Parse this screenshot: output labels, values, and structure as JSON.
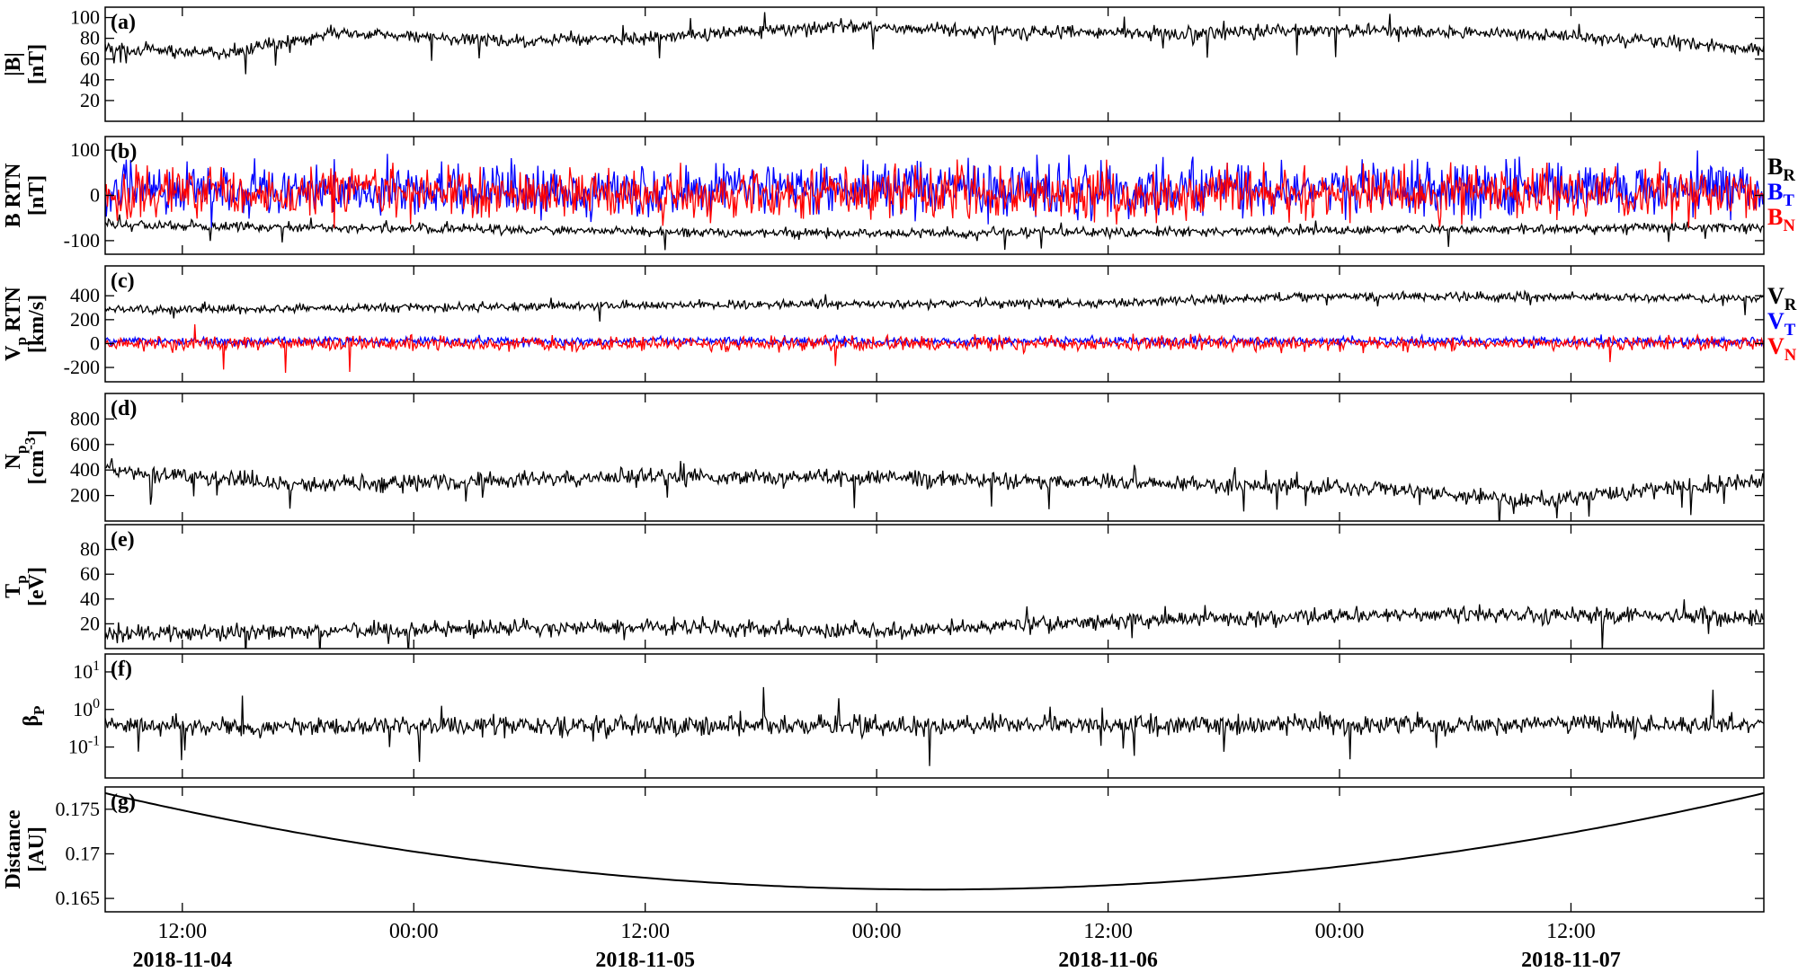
{
  "chart_data": {
    "type": "line",
    "x_start": "2018-11-04 08:00",
    "x_end": "2018-11-07 22:00",
    "x_ticks": [
      "12:00",
      "00:00",
      "12:00",
      "00:00",
      "12:00",
      "00:00",
      "12:00"
    ],
    "x_tick_times": [
      "2018-11-04 12:00",
      "2018-11-05 00:00",
      "2018-11-05 12:00",
      "2018-11-06 00:00",
      "2018-11-06 12:00",
      "2018-11-07 00:00",
      "2018-11-07 12:00"
    ],
    "date_labels": [
      "2018-11-04",
      "2018-11-05",
      "2018-11-06",
      "2018-11-07"
    ],
    "date_label_times": [
      "2018-11-04 12:00",
      "2018-11-05 12:00",
      "2018-11-06 12:00",
      "2018-11-07 12:00"
    ],
    "panels": [
      {
        "id": "a",
        "letter": "(a)",
        "ylabel": [
          "|B|",
          "[nT]"
        ],
        "ylim": [
          0,
          110
        ],
        "yscale": "linear",
        "yticks": [
          20,
          40,
          60,
          80,
          100
        ],
        "yticklabels": [
          "20",
          "40",
          "60",
          "80",
          "100"
        ],
        "series": [
          {
            "name": "|B|",
            "color": "#000000",
            "base": 80,
            "noise": 6,
            "spikes": 8,
            "trend": [
              [
                "2018-11-04 08:00",
                70
              ],
              [
                "2018-11-04 14:00",
                65
              ],
              [
                "2018-11-04 20:00",
                85
              ],
              [
                "2018-11-05 04:00",
                78
              ],
              [
                "2018-11-05 12:00",
                80
              ],
              [
                "2018-11-05 22:00",
                92
              ],
              [
                "2018-11-06 06:00",
                86
              ],
              [
                "2018-11-06 16:00",
                85
              ],
              [
                "2018-11-07 00:00",
                88
              ],
              [
                "2018-11-07 12:00",
                82
              ],
              [
                "2018-11-07 22:00",
                70
              ]
            ]
          }
        ]
      },
      {
        "id": "b",
        "letter": "(b)",
        "ylabel": [
          "B RTN",
          "[nT]"
        ],
        "ylim": [
          -130,
          130
        ],
        "yscale": "linear",
        "yticks": [
          -100,
          0,
          100
        ],
        "yticklabels": [
          "-100",
          "0",
          "100"
        ],
        "series": [
          {
            "name": "B",
            "sub": "R",
            "color": "#000000",
            "base": -75,
            "noise": 10,
            "spikes": 6,
            "trend": [
              [
                "2018-11-04 08:00",
                -65
              ],
              [
                "2018-11-05 12:00",
                -80
              ],
              [
                "2018-11-06 00:00",
                -85
              ],
              [
                "2018-11-07 22:00",
                -70
              ]
            ]
          },
          {
            "name": "B",
            "sub": "T",
            "color": "#0000ff",
            "base": 15,
            "noise": 55,
            "spikes": 0,
            "trend": [
              [
                "2018-11-04 08:00",
                10
              ],
              [
                "2018-11-07 22:00",
                15
              ]
            ]
          },
          {
            "name": "B",
            "sub": "N",
            "color": "#ff0000",
            "base": 5,
            "noise": 55,
            "spikes": 0,
            "trend": [
              [
                "2018-11-04 08:00",
                5
              ],
              [
                "2018-11-07 22:00",
                5
              ]
            ]
          }
        ]
      },
      {
        "id": "c",
        "letter": "(c)",
        "ylabel": [
          "V_p RTN",
          "[km/s]"
        ],
        "ylim": [
          -320,
          650
        ],
        "yscale": "linear",
        "yticks": [
          -200,
          0,
          200,
          400
        ],
        "yticklabels": [
          "-200",
          "0",
          "200",
          "400"
        ],
        "series": [
          {
            "name": "V",
            "sub": "R",
            "color": "#000000",
            "base": 320,
            "noise": 35,
            "spikes": 3,
            "trend": [
              [
                "2018-11-04 08:00",
                280
              ],
              [
                "2018-11-05 12:00",
                320
              ],
              [
                "2018-11-06 12:00",
                340
              ],
              [
                "2018-11-07 00:00",
                400
              ],
              [
                "2018-11-07 22:00",
                380
              ]
            ]
          },
          {
            "name": "V",
            "sub": "T",
            "color": "#0000ff",
            "base": 20,
            "noise": 35,
            "spikes": 0,
            "trend": [
              [
                "2018-11-04 08:00",
                20
              ],
              [
                "2018-11-07 22:00",
                20
              ]
            ]
          },
          {
            "name": "V",
            "sub": "N",
            "color": "#ff0000",
            "base": 0,
            "noise": 60,
            "spikes": 2,
            "trend": [
              [
                "2018-11-04 08:00",
                0
              ],
              [
                "2018-11-07 22:00",
                0
              ]
            ]
          }
        ]
      },
      {
        "id": "d",
        "letter": "(d)",
        "ylabel": [
          "N_p",
          "[cm^-3]"
        ],
        "ylim": [
          0,
          1000
        ],
        "yscale": "linear",
        "yticks": [
          200,
          400,
          600,
          800
        ],
        "yticklabels": [
          "200",
          "400",
          "600",
          "800"
        ],
        "series": [
          {
            "name": "Np",
            "color": "#000000",
            "base": 320,
            "noise": 60,
            "spikes": 10,
            "trend": [
              [
                "2018-11-04 08:00",
                400
              ],
              [
                "2018-11-04 18:00",
                280
              ],
              [
                "2018-11-05 12:00",
                350
              ],
              [
                "2018-11-06 06:00",
                330
              ],
              [
                "2018-11-07 03:00",
                250
              ],
              [
                "2018-11-07 10:00",
                160
              ],
              [
                "2018-11-07 22:00",
                320
              ]
            ]
          }
        ]
      },
      {
        "id": "e",
        "letter": "(e)",
        "ylabel": [
          "T_p",
          "[eV]"
        ],
        "ylim": [
          0,
          100
        ],
        "yscale": "linear",
        "yticks": [
          20,
          40,
          60,
          80
        ],
        "yticklabels": [
          "20",
          "40",
          "60",
          "80"
        ],
        "series": [
          {
            "name": "Tp",
            "color": "#000000",
            "base": 15,
            "noise": 6,
            "spikes": 6,
            "trend": [
              [
                "2018-11-04 08:00",
                12
              ],
              [
                "2018-11-05 12:00",
                18
              ],
              [
                "2018-11-06 00:00",
                14
              ],
              [
                "2018-11-06 12:00",
                22
              ],
              [
                "2018-11-07 06:00",
                28
              ],
              [
                "2018-11-07 22:00",
                25
              ]
            ]
          }
        ]
      },
      {
        "id": "f",
        "letter": "(f)",
        "ylabel": [
          "β_P"
        ],
        "ylim": [
          0.015,
          30
        ],
        "yscale": "log",
        "yticks": [
          0.1,
          1,
          10
        ],
        "yticklabels": [
          "10^-1",
          "10^0",
          "10^1"
        ],
        "series": [
          {
            "name": "beta",
            "color": "#000000",
            "base": 0.35,
            "noise": 0.25,
            "spikes": 5,
            "lognoise": true,
            "trend": [
              [
                "2018-11-04 08:00",
                0.35
              ],
              [
                "2018-11-07 22:00",
                0.4
              ]
            ]
          }
        ]
      },
      {
        "id": "g",
        "letter": "(g)",
        "ylabel": [
          "Distance",
          "[AU]"
        ],
        "ylim": [
          0.1635,
          0.1775
        ],
        "yscale": "linear",
        "yticks": [
          0.165,
          0.17,
          0.175
        ],
        "yticklabels": [
          "0.165",
          "0.17",
          "0.175"
        ],
        "series": [
          {
            "name": "Distance",
            "color": "#000000",
            "smooth": true,
            "perihelion": "2018-11-06 03:00",
            "min": 0.166,
            "edge": 0.1768
          }
        ]
      }
    ]
  }
}
